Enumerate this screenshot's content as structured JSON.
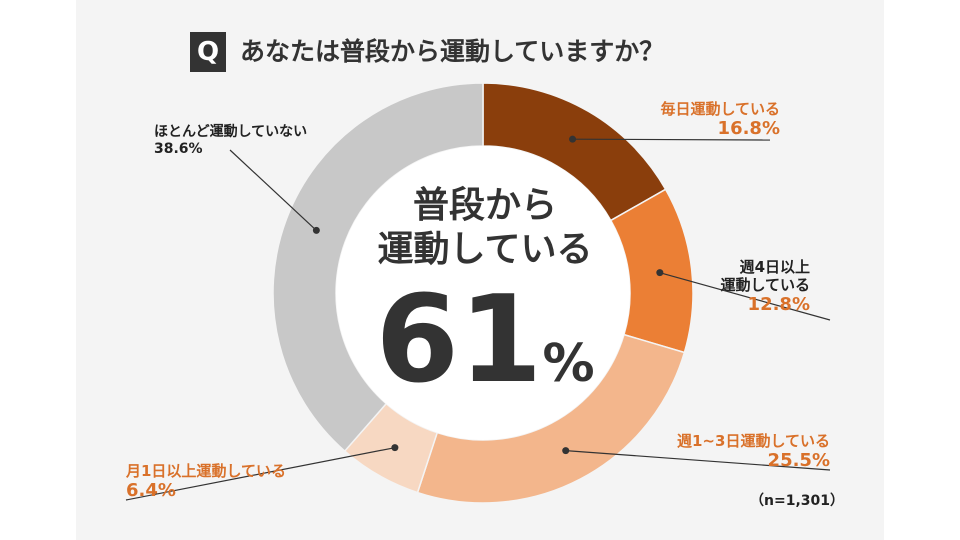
{
  "question": {
    "badge": "Q",
    "text": "あなたは普段から運動していますか？"
  },
  "center": {
    "line1": "普段から",
    "line2": "運動している",
    "value": "61",
    "unit": "%"
  },
  "sample_note": "（n=1,301）",
  "chart_data": {
    "type": "pie",
    "donut": true,
    "title": "あなたは普段から運動していますか？",
    "slices": [
      {
        "name": "毎日運動している",
        "label_lines": [
          "毎日運動している"
        ],
        "value": 16.8,
        "value_label": "16.8%",
        "color": "#8a3e0c"
      },
      {
        "name": "週4日以上運動している",
        "label_lines": [
          "週4日以上",
          "運動している"
        ],
        "value": 12.8,
        "value_label": "12.8%",
        "color": "#eb7f35"
      },
      {
        "name": "週1~3日運動している",
        "label_lines": [
          "週1~3日運動している"
        ],
        "value": 25.5,
        "value_label": "25.5%",
        "color": "#f3b68c"
      },
      {
        "name": "月1日以上運動している",
        "label_lines": [
          "月1日以上運動している"
        ],
        "value": 6.4,
        "value_label": "6.4%",
        "color": "#f7d8c2"
      },
      {
        "name": "ほとんど運動していない",
        "label_lines": [
          "ほとんど運動していない"
        ],
        "value": 38.6,
        "value_label": "38.6%",
        "color": "#c8c8c8"
      }
    ]
  }
}
